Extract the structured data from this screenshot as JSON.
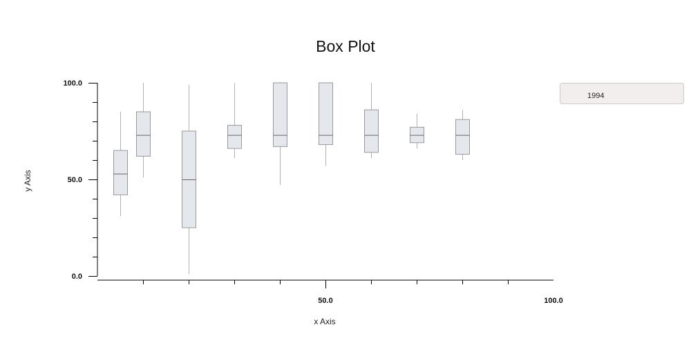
{
  "chart_data": {
    "type": "box",
    "title": "Box Plot",
    "xlabel": "x Axis",
    "ylabel": "y Axis",
    "xlim": [
      0,
      100
    ],
    "ylim": [
      0,
      100
    ],
    "x_tick_labels": [
      "50.0",
      "100.0"
    ],
    "y_tick_labels": [
      "0.0",
      "50.0",
      "100.0"
    ],
    "grid": false,
    "legend_position": "right",
    "colors": {
      "box_fill": "#e4e8ec",
      "box_stroke": "#999999",
      "axis": "#000000"
    },
    "series": [
      {
        "name": "1994",
        "boxes": [
          {
            "x": 5,
            "min": 31,
            "q1": 42,
            "median": 53,
            "q3": 65,
            "max": 85
          },
          {
            "x": 10,
            "min": 51,
            "q1": 62,
            "median": 73,
            "q3": 85,
            "max": 100
          },
          {
            "x": 20,
            "min": 1,
            "q1": 25,
            "median": 50,
            "q3": 75,
            "max": 99
          },
          {
            "x": 30,
            "min": 61,
            "q1": 66,
            "median": 73,
            "q3": 78,
            "max": 100
          },
          {
            "x": 40,
            "min": 47,
            "q1": 67,
            "median": 73,
            "q3": 100,
            "max": 100
          },
          {
            "x": 50,
            "min": 57,
            "q1": 68,
            "median": 73,
            "q3": 100,
            "max": 100
          },
          {
            "x": 60,
            "min": 61,
            "q1": 64,
            "median": 73,
            "q3": 86,
            "max": 100
          },
          {
            "x": 70,
            "min": 66,
            "q1": 69,
            "median": 73,
            "q3": 77,
            "max": 84
          },
          {
            "x": 80,
            "min": 60,
            "q1": 63,
            "median": 73,
            "q3": 81,
            "max": 86
          }
        ]
      }
    ]
  }
}
